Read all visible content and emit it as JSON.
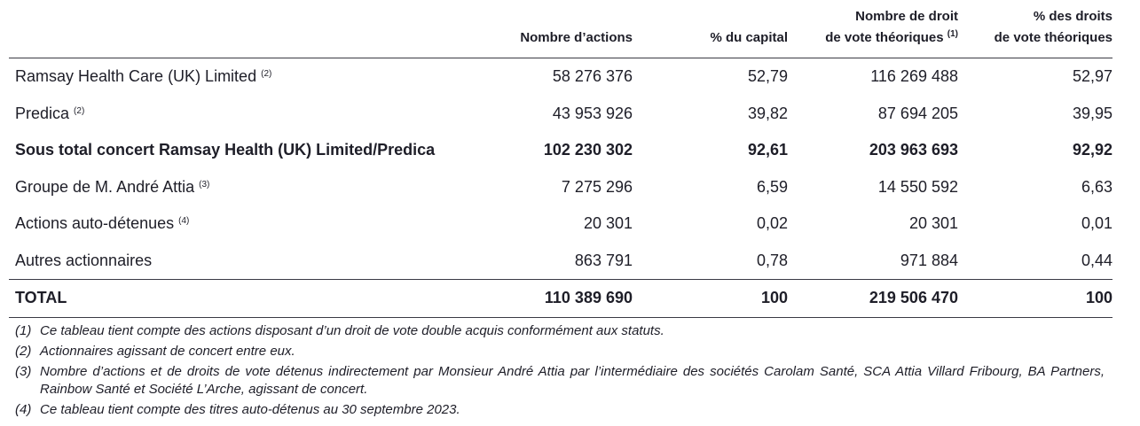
{
  "table": {
    "headers": [
      {
        "line1": "",
        "line2": "Nombre d’actions",
        "sup": ""
      },
      {
        "line1": "",
        "line2": "% du capital",
        "sup": ""
      },
      {
        "line1": "Nombre de droit",
        "line2": "de vote théoriques",
        "sup": "(1)"
      },
      {
        "line1": "% des droits",
        "line2": "de vote théoriques",
        "sup": ""
      }
    ],
    "rows": [
      {
        "label": "Ramsay Health Care (UK) Limited",
        "sup": "(2)",
        "shares": "58 276 376",
        "capital": "52,79",
        "votes": "116 269 488",
        "votes_pct": "52,97"
      },
      {
        "label": "Predica",
        "sup": "(2)",
        "shares": "43 953 926",
        "capital": "39,82",
        "votes": "87 694 205",
        "votes_pct": "39,95"
      },
      {
        "label": "Sous total concert Ramsay Health (UK) Limited/Predica",
        "sup": "",
        "shares": "102 230 302",
        "capital": "92,61",
        "votes": "203 963 693",
        "votes_pct": "92,92"
      },
      {
        "label": "Groupe de M. André Attia",
        "sup": "(3)",
        "shares": "7 275 296",
        "capital": "6,59",
        "votes": "14 550 592",
        "votes_pct": "6,63"
      },
      {
        "label": "Actions auto-détenues",
        "sup": "(4)",
        "shares": "20 301",
        "capital": "0,02",
        "votes": "20 301",
        "votes_pct": "0,01"
      },
      {
        "label": "Autres actionnaires",
        "sup": "",
        "shares": "863 791",
        "capital": "0,78",
        "votes": "971 884",
        "votes_pct": "0,44"
      }
    ],
    "total": {
      "label": "TOTAL",
      "shares": "110 389 690",
      "capital": "100",
      "votes": "219 506 470",
      "votes_pct": "100"
    }
  },
  "notes": [
    {
      "num": "(1)",
      "text": "Ce tableau tient compte des actions disposant d’un droit de vote double acquis conformément aux statuts."
    },
    {
      "num": "(2)",
      "text": "Actionnaires agissant de concert entre eux."
    },
    {
      "num": "(3)",
      "text": "Nombre d’actions et de droits de vote détenus indirectement par Monsieur André Attia par l’intermédiaire des sociétés Carolam Santé, SCA Attia Villard Fribourg, BA Partners, Rainbow Santé et Société L’Arche, agissant de concert."
    },
    {
      "num": "(4)",
      "text": "Ce tableau tient compte des titres auto-détenus au 30 septembre 2023."
    }
  ]
}
